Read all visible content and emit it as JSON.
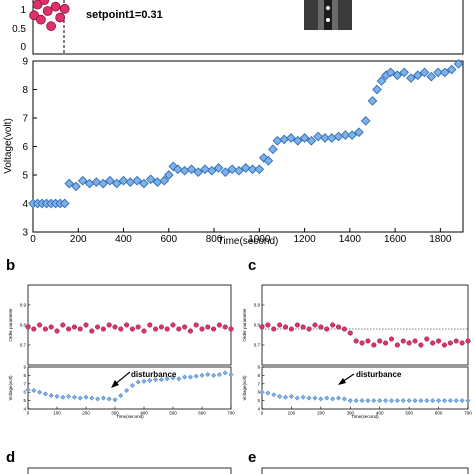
{
  "panels": {
    "a": {
      "annotation": "setpoint1=0.31",
      "order_ticks": [
        "0",
        "0.5",
        "1"
      ],
      "chart_data": {
        "type": "scatter",
        "xlabel": "Time(second)",
        "ylabel": "Voltage(volt)",
        "xlim": [
          0,
          1900
        ],
        "ylim": [
          3,
          9
        ],
        "xticks": [
          0,
          200,
          400,
          600,
          800,
          1000,
          1200,
          1400,
          1600,
          1800
        ],
        "yticks": [
          3,
          4,
          5,
          6,
          7,
          8,
          9
        ],
        "series": [
          {
            "color": "#2e6db5",
            "marker": "diamond",
            "x": [
              0,
              20,
              40,
              60,
              80,
              100,
              120,
              140,
              160,
              190,
              220,
              250,
              280,
              310,
              340,
              370,
              400,
              430,
              460,
              490,
              520,
              550,
              580,
              600,
              620,
              640,
              670,
              700,
              730,
              760,
              790,
              820,
              850,
              880,
              910,
              940,
              970,
              1000,
              1020,
              1040,
              1060,
              1080,
              1110,
              1140,
              1170,
              1200,
              1230,
              1260,
              1290,
              1320,
              1350,
              1380,
              1410,
              1440,
              1470,
              1500,
              1520,
              1540,
              1560,
              1580,
              1610,
              1640,
              1670,
              1700,
              1730,
              1760,
              1790,
              1820,
              1850,
              1880
            ],
            "y": [
              4.0,
              4.0,
              4.0,
              4.0,
              4.0,
              4.0,
              4.0,
              4.0,
              4.7,
              4.6,
              4.8,
              4.7,
              4.75,
              4.7,
              4.8,
              4.7,
              4.8,
              4.75,
              4.8,
              4.7,
              4.85,
              4.75,
              4.8,
              5.0,
              5.3,
              5.2,
              5.15,
              5.2,
              5.1,
              5.2,
              5.15,
              5.25,
              5.1,
              5.2,
              5.15,
              5.25,
              5.2,
              5.2,
              5.6,
              5.5,
              5.9,
              6.2,
              6.25,
              6.3,
              6.2,
              6.3,
              6.2,
              6.35,
              6.3,
              6.3,
              6.35,
              6.4,
              6.4,
              6.5,
              6.9,
              7.6,
              8.0,
              8.3,
              8.5,
              8.6,
              8.5,
              8.6,
              8.4,
              8.5,
              8.6,
              8.45,
              8.6,
              8.6,
              8.7,
              8.9
            ]
          },
          {
            "color": "#e0306b",
            "marker": "circle",
            "x": [
              5,
              20,
              35,
              50,
              65,
              80,
              100,
              120,
              140
            ],
            "y": [
              0.8,
              1.05,
              0.7,
              1.15,
              0.9,
              0.55,
              1.0,
              0.75,
              0.95
            ]
          }
        ]
      }
    },
    "b": {
      "annotation": "disturbance",
      "order_ylabel": "Order parameter",
      "order_ticks": [
        "0.9",
        "0.8",
        "0.7"
      ],
      "volt_ylabel": "Voltage(volt)",
      "volt_ticks": [
        "9",
        "8",
        "7",
        "6",
        "5",
        "4"
      ],
      "chart_data": [
        {
          "type": "scatter",
          "ylabel": "Order parameter",
          "ylim": [
            0.6,
            1.0
          ],
          "yticks": [
            0.7,
            0.8,
            0.9
          ],
          "xlim": [
            0,
            700
          ],
          "x": [
            0,
            20,
            40,
            60,
            80,
            100,
            120,
            140,
            160,
            180,
            200,
            220,
            240,
            260,
            280,
            300,
            320,
            340,
            360,
            380,
            400,
            420,
            440,
            460,
            480,
            500,
            520,
            540,
            560,
            580,
            600,
            620,
            640,
            660,
            680,
            700
          ],
          "y": [
            0.79,
            0.78,
            0.8,
            0.78,
            0.79,
            0.77,
            0.8,
            0.78,
            0.79,
            0.78,
            0.8,
            0.77,
            0.79,
            0.78,
            0.8,
            0.79,
            0.78,
            0.8,
            0.78,
            0.79,
            0.77,
            0.8,
            0.78,
            0.79,
            0.78,
            0.8,
            0.78,
            0.79,
            0.77,
            0.8,
            0.78,
            0.79,
            0.78,
            0.8,
            0.79,
            0.78
          ]
        },
        {
          "type": "scatter",
          "xlabel": "Time(second)",
          "ylabel": "Voltage(volt)",
          "xlim": [
            0,
            700
          ],
          "ylim": [
            4,
            9
          ],
          "xticks": [
            0,
            100,
            200,
            300,
            400,
            500,
            600,
            700
          ],
          "x": [
            0,
            20,
            40,
            60,
            80,
            100,
            120,
            140,
            160,
            180,
            200,
            220,
            240,
            260,
            280,
            300,
            320,
            340,
            360,
            380,
            400,
            420,
            440,
            460,
            480,
            500,
            520,
            540,
            560,
            580,
            600,
            620,
            640,
            660,
            680,
            700
          ],
          "y": [
            6.3,
            6.2,
            6.0,
            5.8,
            5.6,
            5.5,
            5.4,
            5.5,
            5.4,
            5.3,
            5.4,
            5.3,
            5.2,
            5.3,
            5.2,
            5.1,
            5.6,
            6.2,
            6.8,
            7.2,
            7.3,
            7.4,
            7.5,
            7.5,
            7.6,
            7.7,
            7.6,
            7.8,
            7.8,
            7.9,
            8.0,
            8.1,
            8.0,
            8.1,
            8.3,
            8.1
          ]
        }
      ]
    },
    "c": {
      "annotation": "disturbance",
      "order_ylabel": "Order parameter",
      "order_ticks": [
        "0.9",
        "0.8",
        "0.7"
      ],
      "volt_ylabel": "Voltage(volt)",
      "volt_ticks": [
        "9",
        "8",
        "7",
        "6",
        "5",
        "4"
      ],
      "chart_data": [
        {
          "type": "scatter",
          "ylabel": "Order parameter",
          "ylim": [
            0.6,
            1.0
          ],
          "yticks": [
            0.7,
            0.8,
            0.9
          ],
          "xlim": [
            0,
            700
          ],
          "reference_line": 0.78,
          "x": [
            0,
            20,
            40,
            60,
            80,
            100,
            120,
            140,
            160,
            180,
            200,
            220,
            240,
            260,
            280,
            300,
            320,
            340,
            360,
            380,
            400,
            420,
            440,
            460,
            480,
            500,
            520,
            540,
            560,
            580,
            600,
            620,
            640,
            660,
            680,
            700
          ],
          "y": [
            0.79,
            0.8,
            0.78,
            0.8,
            0.79,
            0.78,
            0.8,
            0.79,
            0.78,
            0.8,
            0.79,
            0.78,
            0.8,
            0.79,
            0.78,
            0.76,
            0.72,
            0.71,
            0.72,
            0.7,
            0.72,
            0.71,
            0.73,
            0.7,
            0.72,
            0.71,
            0.72,
            0.7,
            0.73,
            0.71,
            0.72,
            0.7,
            0.71,
            0.72,
            0.71,
            0.72
          ]
        },
        {
          "type": "scatter",
          "xlabel": "Time(second)",
          "ylabel": "Voltage(volt)",
          "xlim": [
            0,
            700
          ],
          "ylim": [
            4,
            9
          ],
          "xticks": [
            0,
            100,
            200,
            300,
            400,
            500,
            600,
            700
          ],
          "x": [
            0,
            20,
            40,
            60,
            80,
            100,
            120,
            140,
            160,
            180,
            200,
            220,
            240,
            260,
            280,
            300,
            320,
            340,
            360,
            380,
            400,
            420,
            440,
            460,
            480,
            500,
            520,
            540,
            560,
            580,
            600,
            620,
            640,
            660,
            680,
            700
          ],
          "y": [
            6.0,
            5.9,
            5.7,
            5.5,
            5.4,
            5.5,
            5.3,
            5.4,
            5.3,
            5.3,
            5.2,
            5.3,
            5.2,
            5.3,
            5.2,
            5.0,
            5.0,
            5.0,
            5.0,
            5.0,
            5.0,
            5.0,
            5.0,
            5.0,
            5.0,
            5.0,
            5.0,
            5.0,
            5.0,
            5.0,
            5.0,
            5.0,
            5.0,
            5.0,
            5.0,
            5.0
          ]
        }
      ]
    },
    "labels": {
      "b": "b",
      "c": "c",
      "d": "d",
      "e": "e"
    }
  }
}
